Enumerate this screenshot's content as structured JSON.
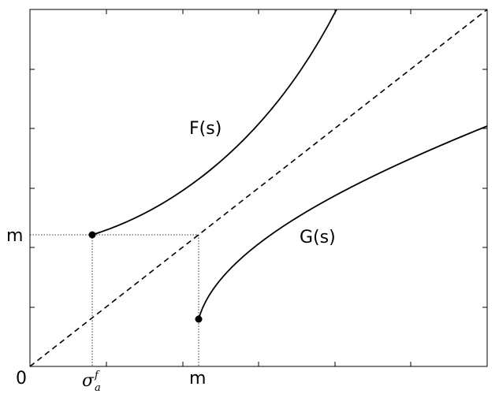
{
  "axis_labels": {
    "origin": "0",
    "sigma": "σ",
    "sigma_sub": "a",
    "sigma_sup": "f",
    "x_m": "m",
    "y_m": "m"
  },
  "curve_labels": [
    "F(s)",
    "G(s)"
  ]
}
